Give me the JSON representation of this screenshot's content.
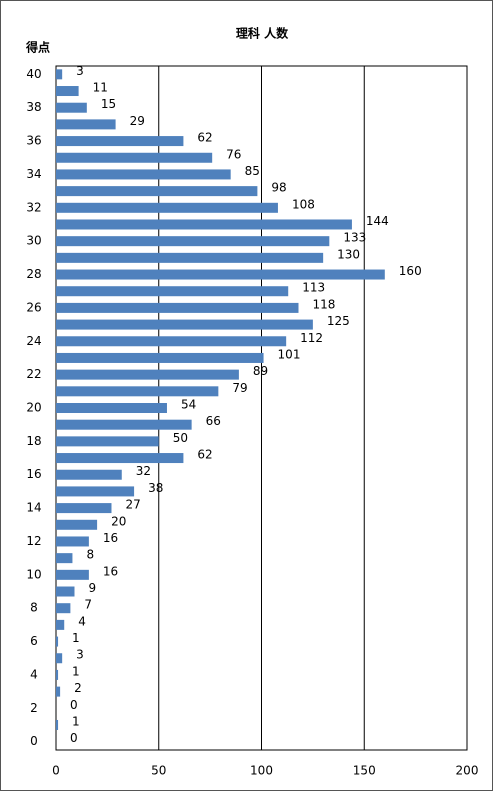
{
  "chart_data": {
    "type": "barh",
    "title": "理科 人数",
    "y_label": "得点",
    "categories": [
      "40",
      null,
      "38",
      null,
      "36",
      null,
      "34",
      null,
      "32",
      null,
      "30",
      null,
      "28",
      null,
      "26",
      null,
      "24",
      null,
      "22",
      null,
      "20",
      null,
      "18",
      null,
      "16",
      null,
      "14",
      null,
      "12",
      null,
      "10",
      null,
      "8",
      null,
      "6",
      null,
      "4",
      null,
      "2",
      null,
      "0"
    ],
    "values": [
      3,
      11,
      15,
      29,
      62,
      76,
      85,
      98,
      108,
      144,
      133,
      130,
      160,
      113,
      118,
      125,
      112,
      101,
      89,
      79,
      54,
      66,
      50,
      62,
      32,
      38,
      27,
      20,
      16,
      8,
      16,
      9,
      7,
      4,
      1,
      3,
      1,
      2,
      0,
      1,
      0
    ],
    "color": "#4f81bd",
    "xlim": [
      0,
      200
    ],
    "xticks": [
      0,
      50,
      100,
      150,
      200
    ],
    "grid": true
  }
}
